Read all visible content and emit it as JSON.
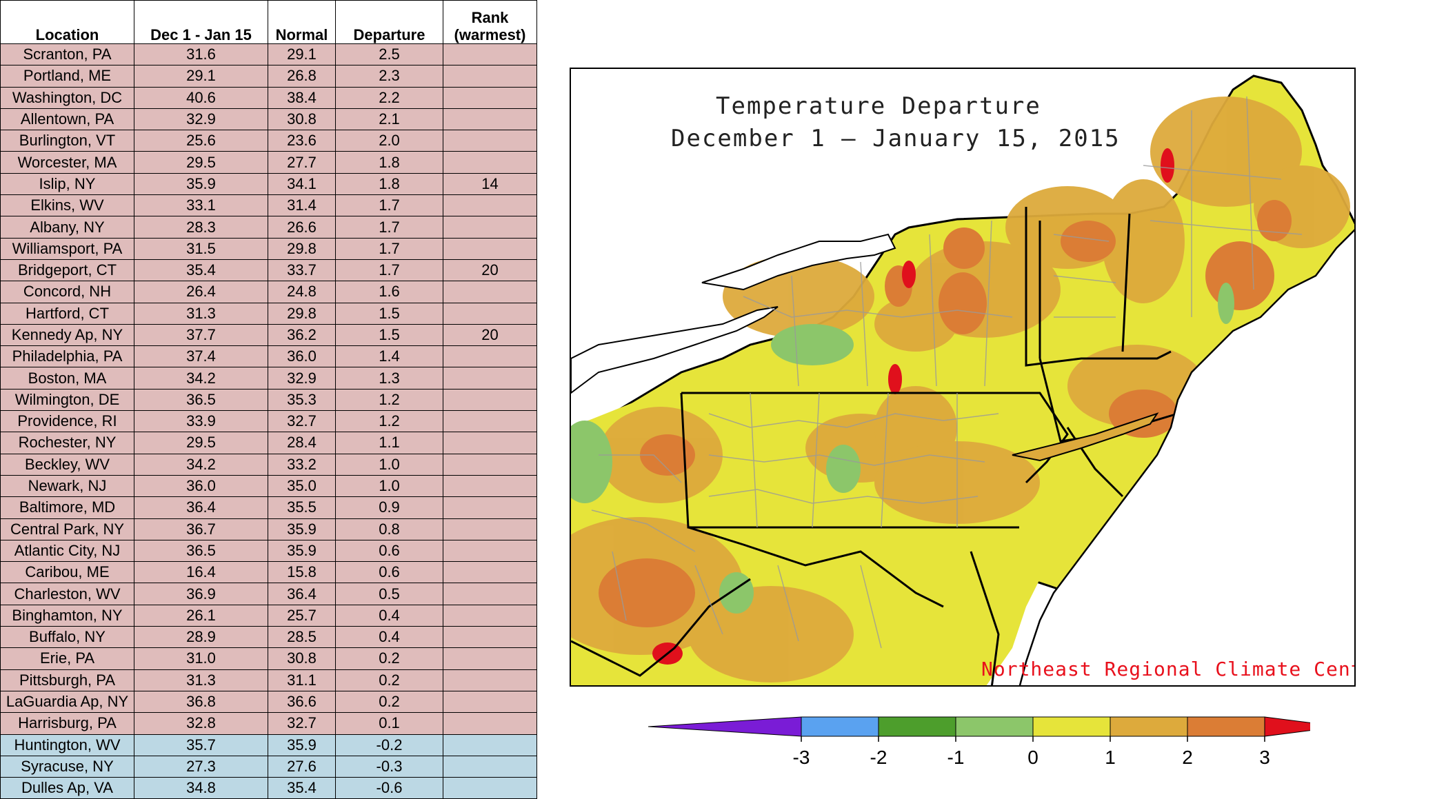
{
  "table": {
    "headers": {
      "location": "Location",
      "period": "Dec 1 - Jan 15",
      "normal": "Normal",
      "departure": "Departure",
      "rank_line1": "Rank",
      "rank_line2": "(warmest)"
    },
    "rows": [
      {
        "location": "Scranton, PA",
        "period": "31.6",
        "normal": "29.1",
        "departure": "2.5",
        "rank": ""
      },
      {
        "location": "Portland, ME",
        "period": "29.1",
        "normal": "26.8",
        "departure": "2.3",
        "rank": ""
      },
      {
        "location": "Washington, DC",
        "period": "40.6",
        "normal": "38.4",
        "departure": "2.2",
        "rank": ""
      },
      {
        "location": "Allentown, PA",
        "period": "32.9",
        "normal": "30.8",
        "departure": "2.1",
        "rank": ""
      },
      {
        "location": "Burlington, VT",
        "period": "25.6",
        "normal": "23.6",
        "departure": "2.0",
        "rank": ""
      },
      {
        "location": "Worcester, MA",
        "period": "29.5",
        "normal": "27.7",
        "departure": "1.8",
        "rank": ""
      },
      {
        "location": "Islip, NY",
        "period": "35.9",
        "normal": "34.1",
        "departure": "1.8",
        "rank": "14"
      },
      {
        "location": "Elkins, WV",
        "period": "33.1",
        "normal": "31.4",
        "departure": "1.7",
        "rank": ""
      },
      {
        "location": "Albany, NY",
        "period": "28.3",
        "normal": "26.6",
        "departure": "1.7",
        "rank": ""
      },
      {
        "location": "Williamsport, PA",
        "period": "31.5",
        "normal": "29.8",
        "departure": "1.7",
        "rank": ""
      },
      {
        "location": "Bridgeport, CT",
        "period": "35.4",
        "normal": "33.7",
        "departure": "1.7",
        "rank": "20"
      },
      {
        "location": "Concord, NH",
        "period": "26.4",
        "normal": "24.8",
        "departure": "1.6",
        "rank": ""
      },
      {
        "location": "Hartford, CT",
        "period": "31.3",
        "normal": "29.8",
        "departure": "1.5",
        "rank": ""
      },
      {
        "location": "Kennedy Ap, NY",
        "period": "37.7",
        "normal": "36.2",
        "departure": "1.5",
        "rank": "20"
      },
      {
        "location": "Philadelphia, PA",
        "period": "37.4",
        "normal": "36.0",
        "departure": "1.4",
        "rank": ""
      },
      {
        "location": "Boston, MA",
        "period": "34.2",
        "normal": "32.9",
        "departure": "1.3",
        "rank": ""
      },
      {
        "location": "Wilmington, DE",
        "period": "36.5",
        "normal": "35.3",
        "departure": "1.2",
        "rank": ""
      },
      {
        "location": "Providence, RI",
        "period": "33.9",
        "normal": "32.7",
        "departure": "1.2",
        "rank": ""
      },
      {
        "location": "Rochester, NY",
        "period": "29.5",
        "normal": "28.4",
        "departure": "1.1",
        "rank": ""
      },
      {
        "location": "Beckley, WV",
        "period": "34.2",
        "normal": "33.2",
        "departure": "1.0",
        "rank": ""
      },
      {
        "location": "Newark, NJ",
        "period": "36.0",
        "normal": "35.0",
        "departure": "1.0",
        "rank": ""
      },
      {
        "location": "Baltimore, MD",
        "period": "36.4",
        "normal": "35.5",
        "departure": "0.9",
        "rank": ""
      },
      {
        "location": "Central Park, NY",
        "period": "36.7",
        "normal": "35.9",
        "departure": "0.8",
        "rank": ""
      },
      {
        "location": "Atlantic City, NJ",
        "period": "36.5",
        "normal": "35.9",
        "departure": "0.6",
        "rank": ""
      },
      {
        "location": "Caribou, ME",
        "period": "16.4",
        "normal": "15.8",
        "departure": "0.6",
        "rank": ""
      },
      {
        "location": "Charleston, WV",
        "period": "36.9",
        "normal": "36.4",
        "departure": "0.5",
        "rank": ""
      },
      {
        "location": "Binghamton, NY",
        "period": "26.1",
        "normal": "25.7",
        "departure": "0.4",
        "rank": ""
      },
      {
        "location": "Buffalo, NY",
        "period": "28.9",
        "normal": "28.5",
        "departure": "0.4",
        "rank": ""
      },
      {
        "location": "Erie, PA",
        "period": "31.0",
        "normal": "30.8",
        "departure": "0.2",
        "rank": ""
      },
      {
        "location": "Pittsburgh, PA",
        "period": "31.3",
        "normal": "31.1",
        "departure": "0.2",
        "rank": ""
      },
      {
        "location": "LaGuardia Ap, NY",
        "period": "36.8",
        "normal": "36.6",
        "departure": "0.2",
        "rank": ""
      },
      {
        "location": "Harrisburg, PA",
        "period": "32.8",
        "normal": "32.7",
        "departure": "0.1",
        "rank": ""
      },
      {
        "location": "Huntington, WV",
        "period": "35.7",
        "normal": "35.9",
        "departure": "-0.2",
        "rank": ""
      },
      {
        "location": "Syracuse, NY",
        "period": "27.3",
        "normal": "27.6",
        "departure": "-0.3",
        "rank": ""
      },
      {
        "location": "Dulles Ap, VA",
        "period": "34.8",
        "normal": "35.4",
        "departure": "-0.6",
        "rank": ""
      }
    ],
    "colors": {
      "warm_row": "#dfbcbb",
      "cold_row": "#bcd8e4"
    }
  },
  "map": {
    "title_line1": "Temperature Departure",
    "title_line2": "December 1 — January 15, 2015",
    "credit": "Northeast Regional Climate Center"
  },
  "chart_data": {
    "type": "table",
    "columns": [
      "Location",
      "Dec 1 - Jan 15",
      "Normal",
      "Departure",
      "Rank (warmest)"
    ],
    "colorbar": {
      "ticks": [
        "-3",
        "-2",
        "-1",
        "0",
        "1",
        "2",
        "3"
      ],
      "bins": [
        {
          "from": -4,
          "to": -3,
          "color": "#7a1cd6"
        },
        {
          "from": -3,
          "to": -2,
          "color": "#5aa2f0"
        },
        {
          "from": -2,
          "to": -1,
          "color": "#4d9e2c"
        },
        {
          "from": -1,
          "to": 0,
          "color": "#8cc66a"
        },
        {
          "from": 0,
          "to": 1,
          "color": "#e6e43a"
        },
        {
          "from": 1,
          "to": 2,
          "color": "#ddaa3c"
        },
        {
          "from": 2,
          "to": 3,
          "color": "#db7d35"
        },
        {
          "from": 3,
          "to": 4,
          "color": "#e0101c"
        }
      ]
    }
  }
}
